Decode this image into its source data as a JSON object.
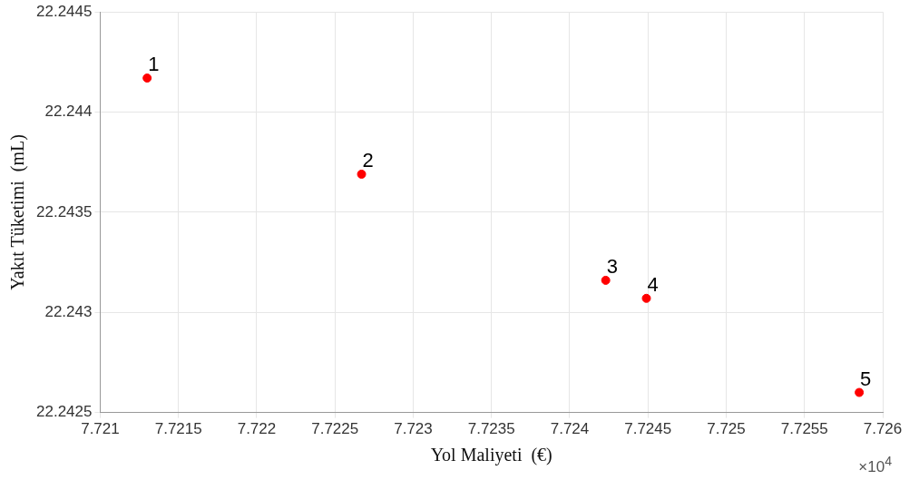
{
  "chart_data": {
    "type": "scatter",
    "xlabel": "Yol Maliyeti  (€)",
    "ylabel": "Yakıt Tüketimi  (mL)",
    "x": [
      7.7213,
      7.72267,
      7.72423,
      7.72449,
      7.72585
    ],
    "values": [
      22.24417,
      22.24369,
      22.24316,
      22.24307,
      22.2426
    ],
    "color": "#ff0000",
    "marker": "circle",
    "grid": true,
    "legend": false,
    "xlim": [
      7.721,
      7.726
    ],
    "xticks": [
      7.721,
      7.7215,
      7.722,
      7.7225,
      7.723,
      7.7235,
      7.724,
      7.7245,
      7.725,
      7.7255,
      7.726
    ],
    "ylim": [
      22.2425,
      22.2445
    ],
    "yticks": [
      22.2425,
      22.243,
      22.2435,
      22.244,
      22.2445
    ],
    "annotations": [
      {
        "text": "1",
        "x": 7.7213,
        "y": 22.24417
      },
      {
        "text": "2",
        "x": 7.72267,
        "y": 22.24369
      },
      {
        "text": "3",
        "x": 7.72423,
        "y": 22.24316
      },
      {
        "text": "4",
        "x": 7.72449,
        "y": 22.24307
      },
      {
        "text": "5",
        "x": 7.72585,
        "y": 22.2426
      },
      "×10$^{4}$"
    ]
  }
}
